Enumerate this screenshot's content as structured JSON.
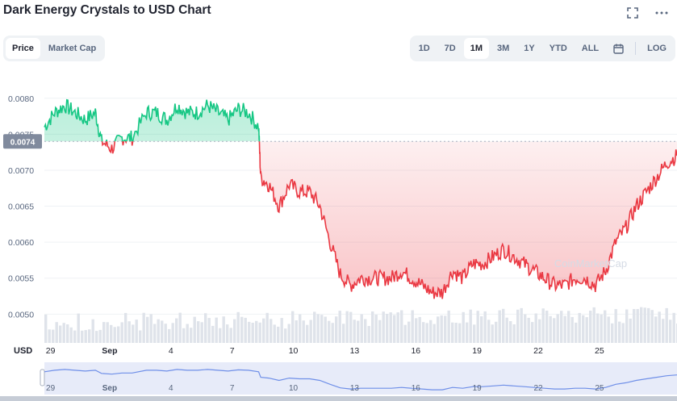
{
  "title": "Dark Energy Crystals to USD Chart",
  "icons": {
    "fullscreen": "fullscreen-icon",
    "more": "more-dots-icon",
    "calendar": "calendar-icon"
  },
  "metric_tabs": [
    {
      "label": "Price",
      "active": true
    },
    {
      "label": "Market Cap",
      "active": false
    }
  ],
  "range_tabs": [
    {
      "label": "1D",
      "active": false
    },
    {
      "label": "7D",
      "active": false
    },
    {
      "label": "1M",
      "active": true
    },
    {
      "label": "3M",
      "active": false
    },
    {
      "label": "1Y",
      "active": false
    },
    {
      "label": "YTD",
      "active": false
    },
    {
      "label": "ALL",
      "active": false
    }
  ],
  "log_label": "LOG",
  "currency_label": "USD",
  "watermark": "CoinMarketCap",
  "colors": {
    "up": "#16c784",
    "down": "#ea3943",
    "navigator": "#6f8fe8",
    "baseline_badge": "#808a9d"
  },
  "chart_data": {
    "type": "line",
    "baseline": 0.0074,
    "baseline_label": "0.0074",
    "ylim": [
      0.0046,
      0.0083
    ],
    "yticks": [
      0.005,
      0.0055,
      0.006,
      0.0065,
      0.007,
      0.0075,
      0.008
    ],
    "ytick_labels": [
      "0.0050",
      "0.0055",
      "0.0060",
      "0.0065",
      "0.0070",
      "0.0075",
      "0.0080"
    ],
    "x_days": [
      0,
      31
    ],
    "xticks": [
      {
        "label": "29",
        "day": 0.3
      },
      {
        "label": "Sep",
        "day": 3.2
      },
      {
        "label": "4",
        "day": 6.2
      },
      {
        "label": "7",
        "day": 9.2
      },
      {
        "label": "10",
        "day": 12.2
      },
      {
        "label": "13",
        "day": 15.2
      },
      {
        "label": "16",
        "day": 18.2
      },
      {
        "label": "19",
        "day": 21.2
      },
      {
        "label": "22",
        "day": 24.2
      },
      {
        "label": "25",
        "day": 27.2
      }
    ],
    "series": [
      {
        "x": [
          0,
          0.5,
          1,
          1.5,
          2,
          2.5,
          2.8,
          3.3,
          3.8,
          4.3,
          5,
          5.5,
          6,
          6.5,
          7,
          7.5,
          8,
          8.5,
          9,
          9.5,
          10,
          10.5,
          10.6,
          11,
          11.5,
          12,
          12.5,
          13,
          13.5,
          14,
          14.5,
          15,
          15.5,
          16,
          16.5,
          17,
          17.5,
          18,
          18.5,
          19,
          19.5,
          20,
          20.5,
          21,
          21.5,
          22,
          22.5,
          23,
          23.5,
          24,
          24.5,
          25,
          25.5,
          26,
          26.5,
          27,
          27.5,
          28,
          28.5,
          29,
          29.5,
          30,
          30.5,
          31
        ],
        "y": [
          0.0076,
          0.0078,
          0.0079,
          0.0078,
          0.0077,
          0.0078,
          0.0074,
          0.0073,
          0.00745,
          0.00745,
          0.0078,
          0.0078,
          0.0077,
          0.0079,
          0.0078,
          0.0078,
          0.0079,
          0.0078,
          0.0077,
          0.00785,
          0.0078,
          0.0076,
          0.0069,
          0.0068,
          0.0065,
          0.0068,
          0.0067,
          0.0067,
          0.0065,
          0.006,
          0.00555,
          0.0054,
          0.0055,
          0.0055,
          0.0055,
          0.0055,
          0.0056,
          0.0055,
          0.0054,
          0.0053,
          0.0053,
          0.0056,
          0.0055,
          0.0057,
          0.0057,
          0.0058,
          0.0059,
          0.0058,
          0.0057,
          0.0056,
          0.0055,
          0.0054,
          0.0054,
          0.0055,
          0.0055,
          0.0054,
          0.0056,
          0.006,
          0.0062,
          0.0065,
          0.0067,
          0.0069,
          0.0071,
          0.0072
        ]
      }
    ]
  }
}
